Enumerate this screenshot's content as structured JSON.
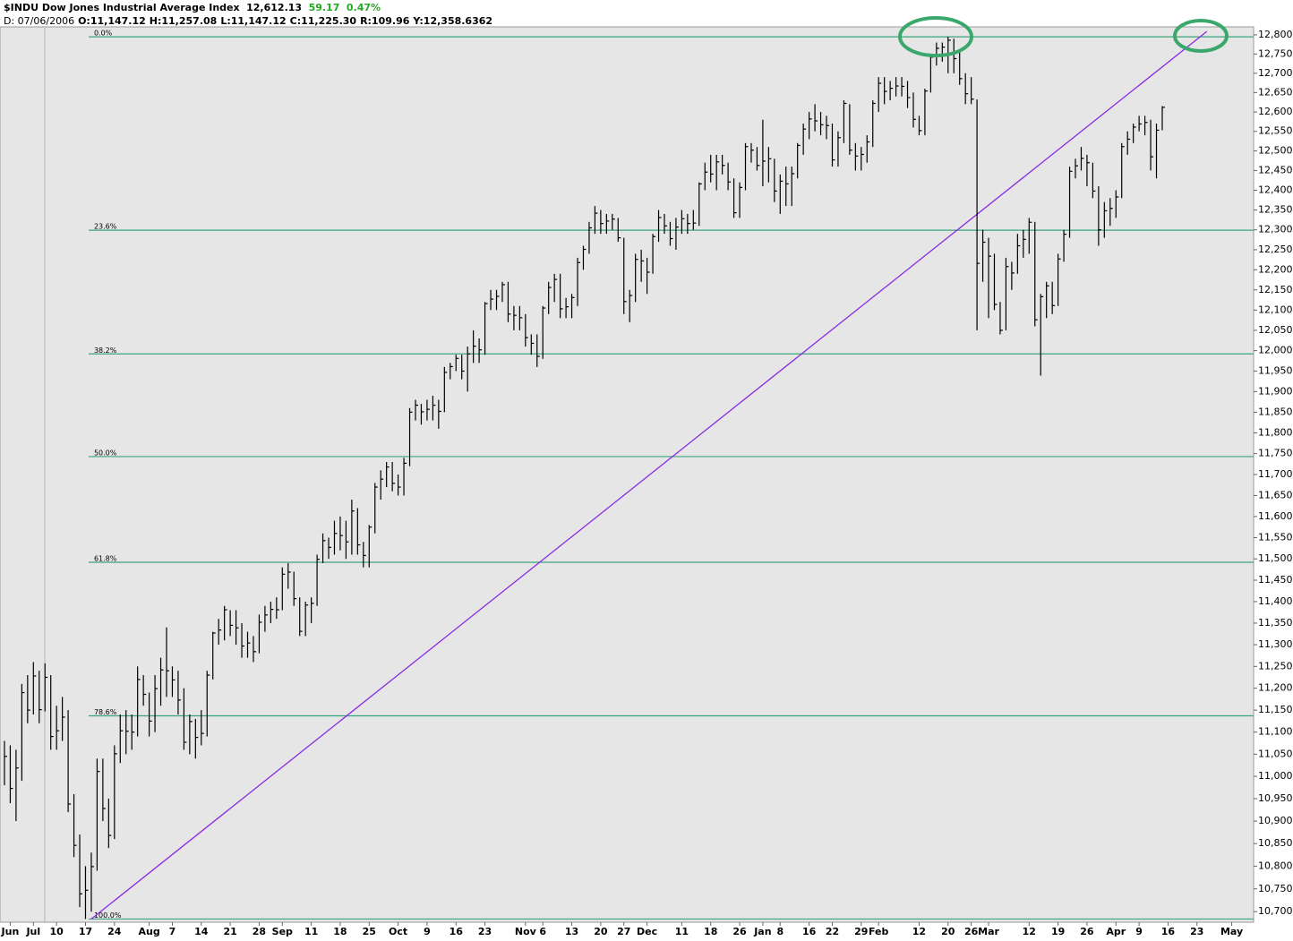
{
  "chart_data": {
    "type": "ohlc",
    "title": "$INDU Dow Jones Industrial Average Index",
    "last": "12,612.13",
    "change": "59.17",
    "change_pct": "0.47%",
    "readout": [
      "D: 07/06/2006",
      "O:11,147.12",
      "H:11,257.08",
      "L:11,147.12",
      "C:11,225.30",
      "R:109.96",
      "Y:12,358.6362"
    ],
    "log": true,
    "color": "#000000",
    "xlim": [
      -0.77,
      215.78
    ],
    "xticks": [
      {
        "value": 1,
        "label": "Jun"
      },
      {
        "value": 5,
        "label": "Jul"
      },
      {
        "value": 9,
        "label": "10"
      },
      {
        "value": 14,
        "label": "17"
      },
      {
        "value": 19,
        "label": "24"
      },
      {
        "value": 25,
        "label": "Aug"
      },
      {
        "value": 29,
        "label": "7"
      },
      {
        "value": 34,
        "label": "14"
      },
      {
        "value": 39,
        "label": "21"
      },
      {
        "value": 44,
        "label": "28"
      },
      {
        "value": 48,
        "label": "Sep"
      },
      {
        "value": 53,
        "label": "11"
      },
      {
        "value": 58,
        "label": "18"
      },
      {
        "value": 63,
        "label": "25"
      },
      {
        "value": 68,
        "label": "Oct"
      },
      {
        "value": 73,
        "label": "9"
      },
      {
        "value": 78,
        "label": "16"
      },
      {
        "value": 83,
        "label": "23"
      },
      {
        "value": 90,
        "label": "Nov"
      },
      {
        "value": 93,
        "label": "6"
      },
      {
        "value": 98,
        "label": "13"
      },
      {
        "value": 103,
        "label": "20"
      },
      {
        "value": 107,
        "label": "27"
      },
      {
        "value": 111,
        "label": "Dec"
      },
      {
        "value": 117,
        "label": "11"
      },
      {
        "value": 122,
        "label": "18"
      },
      {
        "value": 127,
        "label": "26"
      },
      {
        "value": 131,
        "label": "Jan"
      },
      {
        "value": 134,
        "label": "8"
      },
      {
        "value": 139,
        "label": "16"
      },
      {
        "value": 143,
        "label": "22"
      },
      {
        "value": 148,
        "label": "29"
      },
      {
        "value": 151,
        "label": "Feb"
      },
      {
        "value": 158,
        "label": "12"
      },
      {
        "value": 163,
        "label": "20"
      },
      {
        "value": 167,
        "label": "26"
      },
      {
        "value": 170,
        "label": "Mar"
      },
      {
        "value": 177,
        "label": "12"
      },
      {
        "value": 182,
        "label": "19"
      },
      {
        "value": 187,
        "label": "26"
      },
      {
        "value": 192,
        "label": "Apr"
      },
      {
        "value": 196,
        "label": "9"
      },
      {
        "value": 201,
        "label": "16"
      },
      {
        "value": 206,
        "label": "23"
      },
      {
        "value": 212,
        "label": "May"
      }
    ],
    "ylim": [
      10677,
      12821
    ],
    "yticks": [
      {
        "value": 10700,
        "label": "10,700"
      },
      {
        "value": 10750,
        "label": "10,750"
      },
      {
        "value": 10800,
        "label": "10,800"
      },
      {
        "value": 10850,
        "label": "10,850"
      },
      {
        "value": 10900,
        "label": "10,900"
      },
      {
        "value": 10950,
        "label": "10,950"
      },
      {
        "value": 11000,
        "label": "11,000"
      },
      {
        "value": 11050,
        "label": "11,050"
      },
      {
        "value": 11100,
        "label": "11,100"
      },
      {
        "value": 11150,
        "label": "11,150"
      },
      {
        "value": 11200,
        "label": "11,200"
      },
      {
        "value": 11250,
        "label": "11,250"
      },
      {
        "value": 11300,
        "label": "11,300"
      },
      {
        "value": 11350,
        "label": "11,350"
      },
      {
        "value": 11400,
        "label": "11,400"
      },
      {
        "value": 11450,
        "label": "11,450"
      },
      {
        "value": 11500,
        "label": "11,500"
      },
      {
        "value": 11550,
        "label": "11,550"
      },
      {
        "value": 11600,
        "label": "11,600"
      },
      {
        "value": 11650,
        "label": "11,650"
      },
      {
        "value": 11700,
        "label": "11,700"
      },
      {
        "value": 11750,
        "label": "11,750"
      },
      {
        "value": 11800,
        "label": "11,800"
      },
      {
        "value": 11850,
        "label": "11,850"
      },
      {
        "value": 11900,
        "label": "11,900"
      },
      {
        "value": 11950,
        "label": "11,950"
      },
      {
        "value": 12000,
        "label": "12,000"
      },
      {
        "value": 12050,
        "label": "12,050"
      },
      {
        "value": 12100,
        "label": "12,100"
      },
      {
        "value": 12150,
        "label": "12,150"
      },
      {
        "value": 12200,
        "label": "12,200"
      },
      {
        "value": 12250,
        "label": "12,250"
      },
      {
        "value": 12300,
        "label": "12,300"
      },
      {
        "value": 12350,
        "label": "12,350"
      },
      {
        "value": 12400,
        "label": "12,400"
      },
      {
        "value": 12450,
        "label": "12,450"
      },
      {
        "value": 12500,
        "label": "12,500"
      },
      {
        "value": 12550,
        "label": "12,550"
      },
      {
        "value": 12600,
        "label": "12,600"
      },
      {
        "value": 12650,
        "label": "12,650"
      },
      {
        "value": 12700,
        "label": "12,700"
      },
      {
        "value": 12750,
        "label": "12,750"
      },
      {
        "value": 12800,
        "label": "12,800"
      }
    ],
    "high": [
      11080,
      11070,
      11060,
      11210,
      11230,
      11260,
      11240,
      11257,
      11230,
      11160,
      11180,
      11150,
      10960,
      10870,
      10800,
      10830,
      11040,
      11040,
      10950,
      11070,
      11140,
      11150,
      11140,
      11250,
      11230,
      11190,
      11230,
      11270,
      11340,
      11250,
      11240,
      11200,
      11140,
      11130,
      11150,
      11240,
      11330,
      11360,
      11390,
      11380,
      11380,
      11350,
      11330,
      11320,
      11370,
      11390,
      11400,
      11410,
      11480,
      11490,
      11470,
      11410,
      11400,
      11410,
      11510,
      11560,
      11550,
      11590,
      11600,
      11590,
      11640,
      11620,
      11540,
      11580,
      11680,
      11710,
      11730,
      11730,
      11700,
      11740,
      11860,
      11880,
      11870,
      11880,
      11890,
      11880,
      11960,
      11970,
      11990,
      11990,
      12010,
      12050,
      12030,
      12120,
      12150,
      12150,
      12170,
      12170,
      12110,
      12110,
      12090,
      12040,
      12040,
      12110,
      12170,
      12190,
      12190,
      12130,
      12140,
      12230,
      12260,
      12320,
      12360,
      12350,
      12340,
      12340,
      12330,
      12280,
      12150,
      12240,
      12250,
      12230,
      12290,
      12350,
      12340,
      12320,
      12330,
      12350,
      12340,
      12350,
      12420,
      12470,
      12490,
      12490,
      12490,
      12470,
      12430,
      12420,
      12520,
      12520,
      12510,
      12580,
      12510,
      12480,
      12440,
      12460,
      12460,
      12520,
      12570,
      12600,
      12620,
      12600,
      12590,
      12570,
      12550,
      12630,
      12620,
      12520,
      12510,
      12540,
      12630,
      12690,
      12690,
      12680,
      12690,
      12690,
      12680,
      12650,
      12590,
      12660,
      12750,
      12780,
      12780,
      12795,
      12790,
      12760,
      12700,
      12690,
      12632,
      12300,
      12280,
      12240,
      12120,
      12230,
      12220,
      12290,
      12300,
      12330,
      12320,
      12140,
      12170,
      12170,
      12240,
      12300,
      12460,
      12480,
      12510,
      12490,
      12470,
      12410,
      12370,
      12380,
      12400,
      12520,
      12550,
      12570,
      12590,
      12590,
      12580,
      12570,
      12615
    ],
    "low": [
      10980,
      10940,
      10900,
      10990,
      11120,
      11140,
      11120,
      11147,
      11060,
      11060,
      11080,
      10920,
      10820,
      10710,
      10684,
      10700,
      10790,
      10900,
      10840,
      10860,
      11030,
      11050,
      11060,
      11090,
      11160,
      11090,
      11100,
      11160,
      11180,
      11180,
      11140,
      11060,
      11050,
      11040,
      11070,
      11090,
      11220,
      11300,
      11310,
      11320,
      11300,
      11270,
      11270,
      11260,
      11280,
      11330,
      11350,
      11360,
      11380,
      11430,
      11390,
      11320,
      11320,
      11350,
      11390,
      11490,
      11500,
      11510,
      11520,
      11500,
      11510,
      11510,
      11480,
      11480,
      11560,
      11640,
      11670,
      11660,
      11650,
      11650,
      11720,
      11830,
      11820,
      11830,
      11830,
      11810,
      11850,
      11930,
      11950,
      11930,
      11900,
      11970,
      11970,
      11990,
      12100,
      12100,
      12120,
      12070,
      12050,
      12050,
      12010,
      11990,
      11960,
      11980,
      12090,
      12120,
      12080,
      12080,
      12080,
      12110,
      12200,
      12240,
      12290,
      12290,
      12290,
      12300,
      12270,
      12090,
      12070,
      12120,
      12170,
      12140,
      12190,
      12270,
      12290,
      12260,
      12250,
      12290,
      12290,
      12300,
      12310,
      12400,
      12420,
      12400,
      12440,
      12400,
      12330,
      12330,
      12400,
      12470,
      12450,
      12410,
      12420,
      12370,
      12340,
      12360,
      12360,
      12430,
      12490,
      12530,
      12550,
      12540,
      12530,
      12460,
      12460,
      12520,
      12490,
      12450,
      12450,
      12470,
      12510,
      12600,
      12620,
      12630,
      12640,
      12640,
      12610,
      12560,
      12540,
      12540,
      12650,
      12720,
      12730,
      12700,
      12700,
      12670,
      12620,
      12620,
      12050,
      12170,
      12080,
      12100,
      12040,
      12050,
      12150,
      12190,
      12230,
      12240,
      12060,
      11939,
      12080,
      12090,
      12110,
      12220,
      12280,
      12430,
      12450,
      12410,
      12380,
      12260,
      12280,
      12310,
      12330,
      12380,
      12490,
      12520,
      12550,
      12540,
      12450,
      12430,
      12553
    ],
    "close": [
      11045,
      10973,
      11019,
      11190,
      11150,
      11228,
      11151,
      11225,
      11090,
      11103,
      11134,
      10938,
      10846,
      10739,
      10747,
      10799,
      11011,
      10928,
      10868,
      11051,
      11103,
      11102,
      11100,
      11220,
      11186,
      11125,
      11199,
      11242,
      11240,
      11219,
      11173,
      11077,
      11124,
      11088,
      11097,
      11230,
      11327,
      11334,
      11381,
      11345,
      11339,
      11297,
      11304,
      11284,
      11352,
      11369,
      11382,
      11381,
      11464,
      11469,
      11407,
      11331,
      11392,
      11396,
      11499,
      11543,
      11527,
      11560,
      11555,
      11540,
      11613,
      11533,
      11508,
      11575,
      11670,
      11689,
      11718,
      11679,
      11670,
      11727,
      11850,
      11867,
      11851,
      11857,
      11867,
      11852,
      11947,
      11961,
      11981,
      11950,
      11992,
      12011,
      12002,
      12116,
      12127,
      12134,
      12163,
      12090,
      12087,
      12081,
      12032,
      12018,
      11986,
      12105,
      12156,
      12176,
      12103,
      12108,
      12131,
      12218,
      12251,
      12305,
      12342,
      12316,
      12322,
      12327,
      12280,
      12121,
      12136,
      12226,
      12222,
      12194,
      12283,
      12331,
      12310,
      12278,
      12307,
      12328,
      12316,
      12317,
      12416,
      12446,
      12441,
      12472,
      12463,
      12421,
      12343,
      12407,
      12511,
      12502,
      12463,
      12474,
      12480,
      12398,
      12423,
      12416,
      12442,
      12514,
      12556,
      12582,
      12577,
      12567,
      12565,
      12477,
      12534,
      12622,
      12502,
      12487,
      12491,
      12523,
      12622,
      12674,
      12653,
      12661,
      12667,
      12666,
      12637,
      12581,
      12552,
      12654,
      12742,
      12765,
      12768,
      12786,
      12738,
      12686,
      12647,
      12633,
      12216,
      12269,
      12234,
      12114,
      12050,
      12208,
      12192,
      12260,
      12276,
      12319,
      12076,
      12133,
      12160,
      12111,
      12227,
      12289,
      12448,
      12462,
      12481,
      12470,
      12398,
      12300,
      12348,
      12354,
      12383,
      12511,
      12530,
      12561,
      12569,
      12573,
      12485,
      12553,
      12612
    ],
    "fib_color": "#3aa57a",
    "fib_levels": [
      {
        "label": "0.0%",
        "value": 12795
      },
      {
        "label": "23.6%",
        "value": 12299
      },
      {
        "label": "38.2%",
        "value": 11992
      },
      {
        "label": "50.0%",
        "value": 11743
      },
      {
        "label": "61.8%",
        "value": 11492
      },
      {
        "label": "78.6%",
        "value": 11137
      },
      {
        "label": "100.0%",
        "value": 10684
      }
    ],
    "trendline": {
      "color": "#8a2be2",
      "x": [
        15,
        207.7
      ],
      "y": [
        10684,
        12809
      ]
    }
  }
}
